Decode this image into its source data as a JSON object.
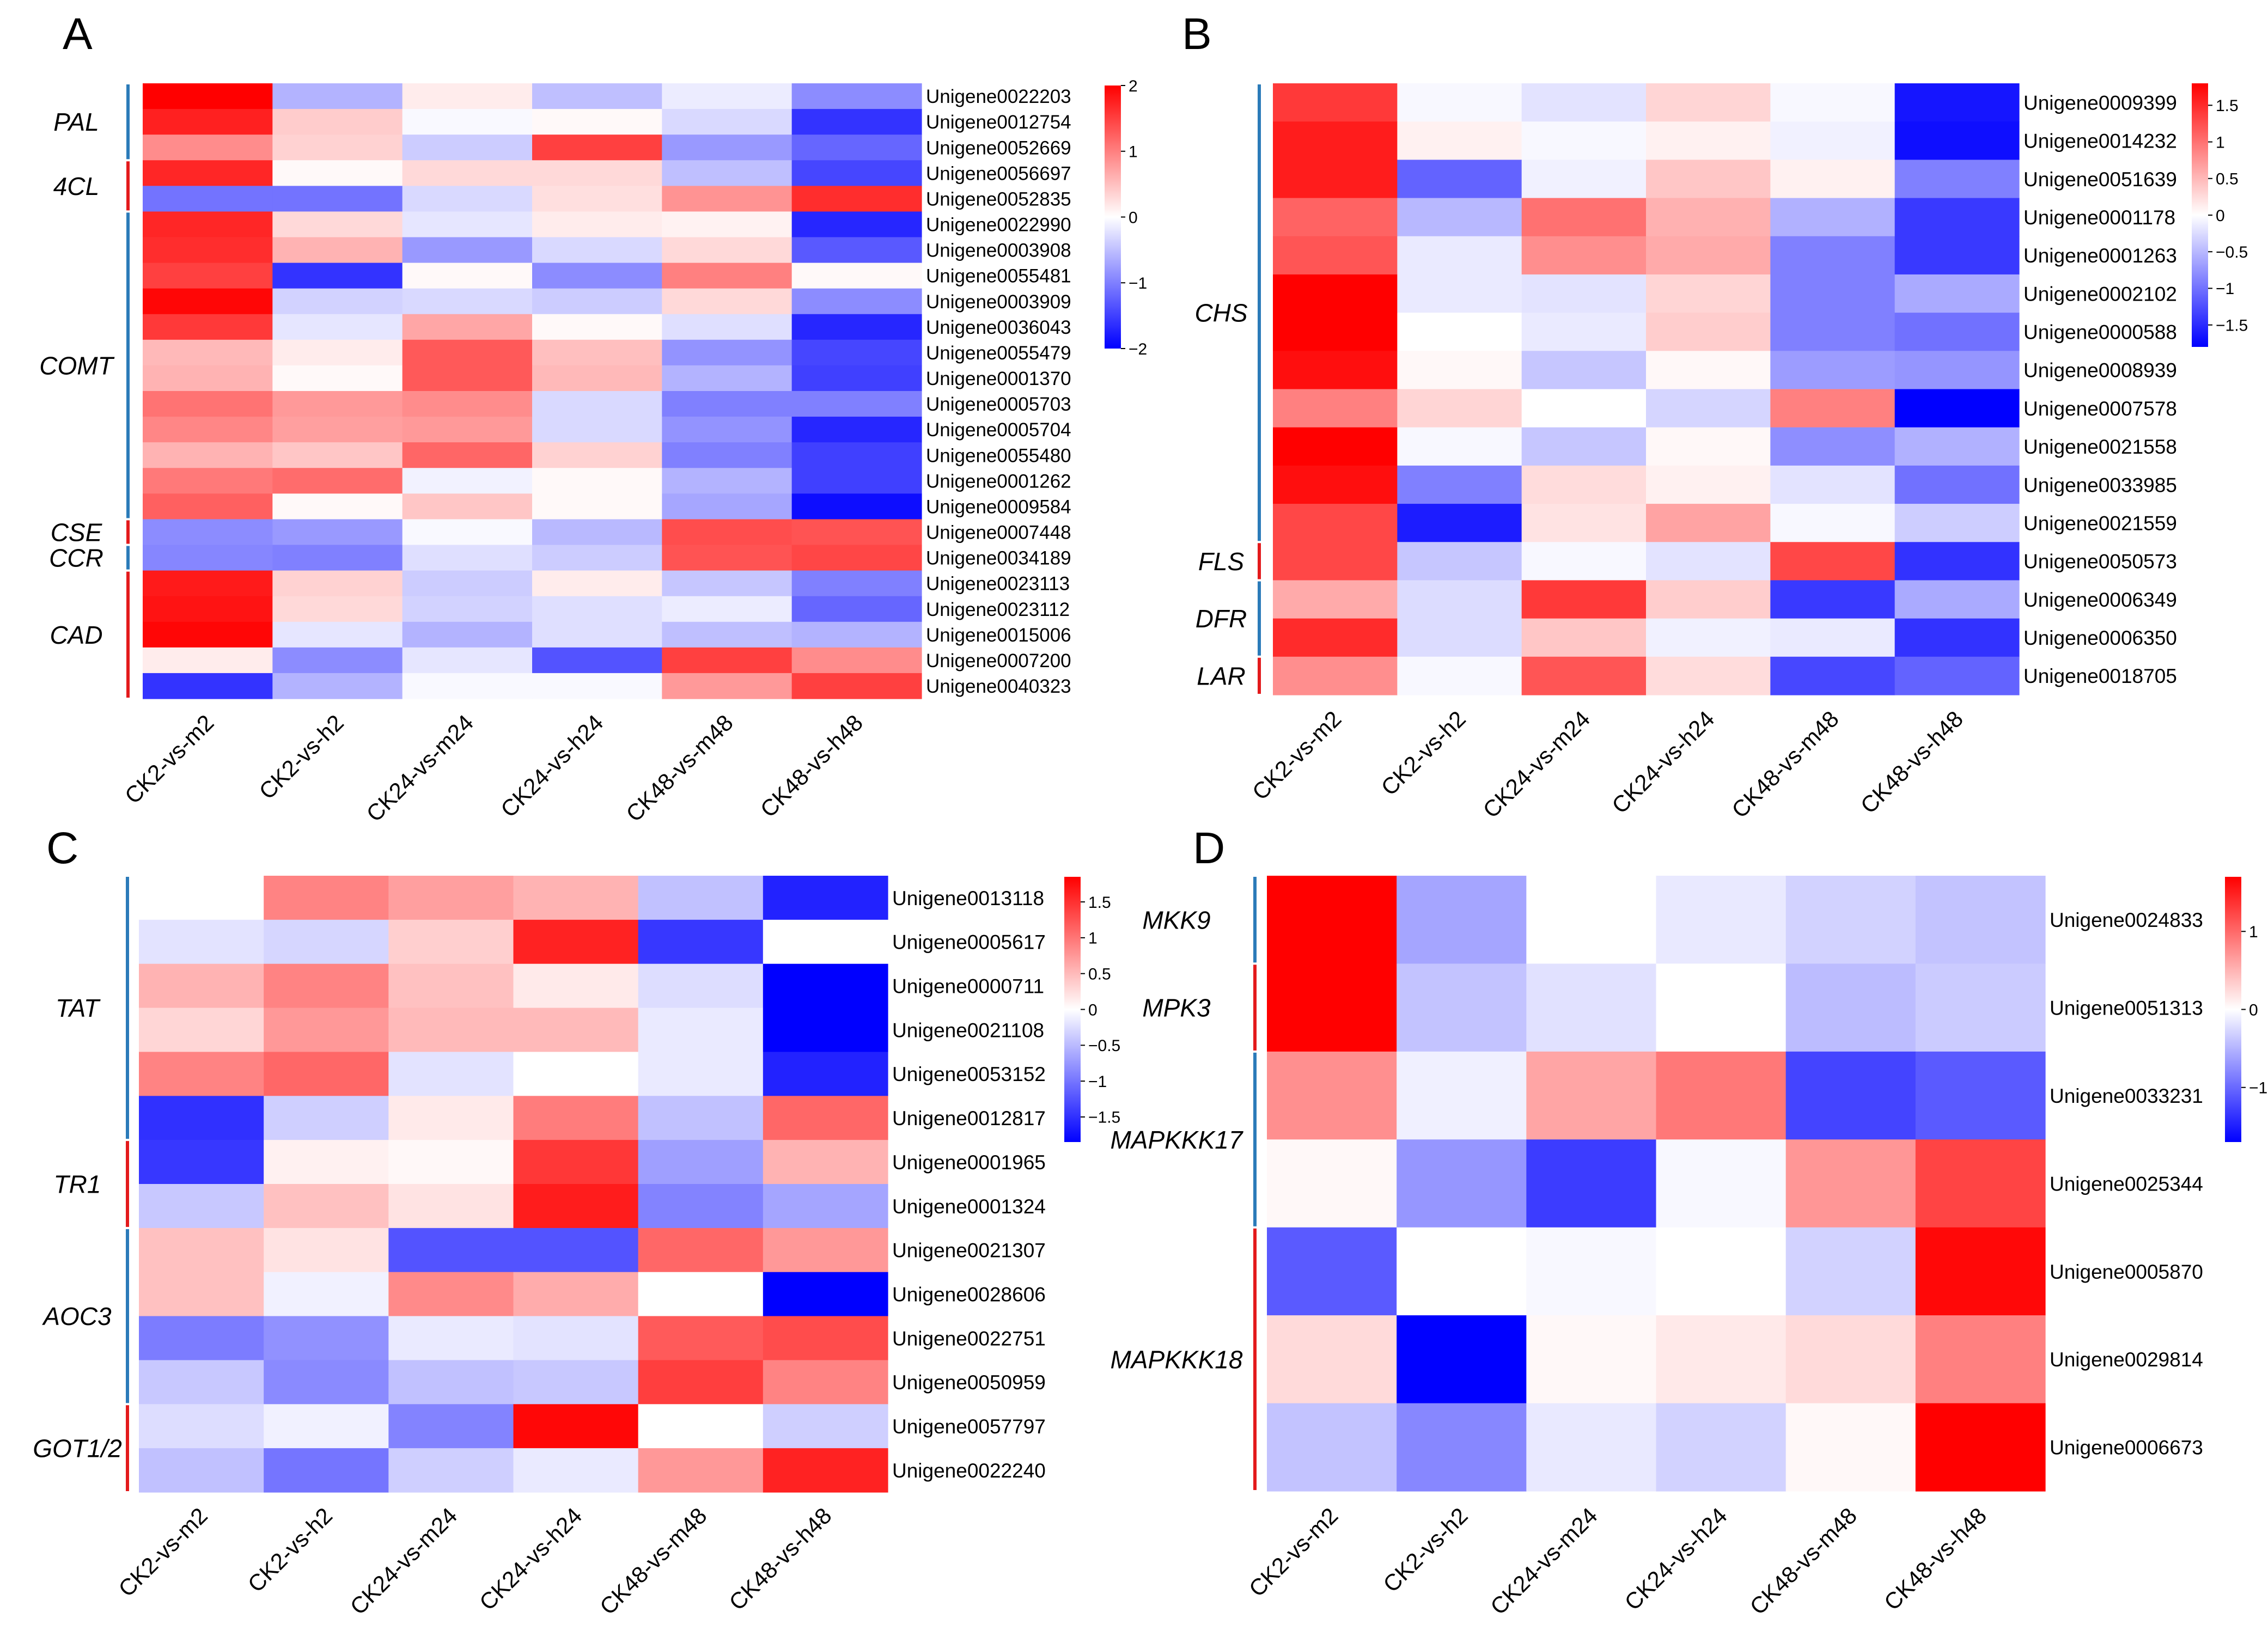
{
  "figure": {
    "columns": [
      "CK2-vs-m2",
      "CK2-vs-h2",
      "CK24-vs-m24",
      "CK24-vs-h24",
      "CK48-vs-m48",
      "CK48-vs-h48"
    ],
    "colors": {
      "low": "#0000ff",
      "mid": "#ffffff",
      "high": "#ff0000",
      "bar_blue": "#2b7bb9",
      "bar_red": "#e31a1c"
    }
  },
  "chart_data": [
    {
      "type": "heatmap",
      "panel": "A",
      "title": "",
      "x": [
        "CK2-vs-m2",
        "CK2-vs-h2",
        "CK24-vs-m24",
        "CK24-vs-h24",
        "CK48-vs-m48",
        "CK48-vs-h48"
      ],
      "rows": [
        "Unigene0022203",
        "Unigene0012754",
        "Unigene0052669",
        "Unigene0056697",
        "Unigene0052835",
        "Unigene0022990",
        "Unigene0003908",
        "Unigene0055481",
        "Unigene0003909",
        "Unigene0036043",
        "Unigene0055479",
        "Unigene0001370",
        "Unigene0005703",
        "Unigene0005704",
        "Unigene0055480",
        "Unigene0001262",
        "Unigene0009584",
        "Unigene0007448",
        "Unigene0034189",
        "Unigene0023113",
        "Unigene0023112",
        "Unigene0015006",
        "Unigene0007200",
        "Unigene0040323"
      ],
      "values": [
        [
          2.0,
          -0.6,
          0.15,
          -0.5,
          -0.15,
          -0.9
        ],
        [
          1.75,
          0.4,
          -0.05,
          0.05,
          -0.3,
          -1.6
        ],
        [
          0.9,
          0.35,
          -0.4,
          1.5,
          -0.8,
          -1.2
        ],
        [
          1.7,
          0.05,
          0.3,
          0.3,
          -0.5,
          -1.45
        ],
        [
          -1.1,
          -1.1,
          -0.3,
          0.25,
          0.85,
          1.65
        ],
        [
          1.7,
          0.3,
          -0.2,
          0.15,
          0.1,
          -1.7
        ],
        [
          1.65,
          0.6,
          -0.8,
          -0.3,
          0.3,
          -1.3
        ],
        [
          1.5,
          -1.6,
          0.05,
          -0.9,
          1.0,
          0.05
        ],
        [
          1.95,
          -0.35,
          -0.3,
          -0.4,
          0.3,
          -0.9
        ],
        [
          1.55,
          -0.2,
          0.7,
          0.05,
          -0.25,
          -1.7
        ],
        [
          0.55,
          0.15,
          1.3,
          0.5,
          -0.85,
          -1.45
        ],
        [
          0.6,
          0.05,
          1.3,
          0.55,
          -0.6,
          -1.5
        ],
        [
          1.1,
          0.8,
          0.9,
          -0.3,
          -1.0,
          -1.0
        ],
        [
          0.95,
          0.75,
          0.8,
          -0.3,
          -0.85,
          -1.7
        ],
        [
          0.6,
          0.45,
          1.2,
          0.35,
          -1.0,
          -1.5
        ],
        [
          1.05,
          1.15,
          -0.1,
          0.05,
          -0.6,
          -1.5
        ],
        [
          1.25,
          0.05,
          0.45,
          0.05,
          -0.7,
          -1.9
        ],
        [
          -0.9,
          -0.8,
          -0.05,
          -0.55,
          1.4,
          1.35
        ],
        [
          -0.95,
          -1.0,
          -0.25,
          -0.4,
          1.35,
          1.45
        ],
        [
          1.8,
          0.35,
          -0.4,
          0.15,
          -0.45,
          -1.0
        ],
        [
          1.85,
          0.3,
          -0.35,
          -0.25,
          -0.15,
          -1.2
        ],
        [
          1.95,
          -0.2,
          -0.6,
          -0.25,
          -0.5,
          -0.6
        ],
        [
          0.15,
          -0.9,
          -0.2,
          -1.35,
          1.5,
          0.9
        ],
        [
          -1.6,
          -0.6,
          -0.05,
          -0.05,
          0.8,
          1.5
        ]
      ],
      "groups": [
        {
          "label": "PAL",
          "start": 0,
          "end": 2,
          "color": "#2b7bb9"
        },
        {
          "label": "4CL",
          "start": 3,
          "end": 4,
          "color": "#e31a1c"
        },
        {
          "label": "COMT",
          "start": 5,
          "end": 16,
          "color": "#2b7bb9"
        },
        {
          "label": "CSE",
          "start": 17,
          "end": 17,
          "color": "#e31a1c"
        },
        {
          "label": "CCR",
          "start": 18,
          "end": 18,
          "color": "#2b7bb9"
        },
        {
          "label": "CAD",
          "start": 19,
          "end": 23,
          "color": "#e31a1c"
        }
      ],
      "legend_ticks": [
        "2",
        "1",
        "0",
        "−1",
        "−2"
      ],
      "legend_tick_values": [
        2,
        1,
        0,
        -1,
        -2
      ],
      "range": [
        -2,
        2
      ]
    },
    {
      "type": "heatmap",
      "panel": "B",
      "title": "",
      "x": [
        "CK2-vs-m2",
        "CK2-vs-h2",
        "CK24-vs-m24",
        "CK24-vs-h24",
        "CK48-vs-m48",
        "CK48-vs-h48"
      ],
      "rows": [
        "Unigene0009399",
        "Unigene0014232",
        "Unigene0051639",
        "Unigene0001178",
        "Unigene0001263",
        "Unigene0002102",
        "Unigene0000588",
        "Unigene0008939",
        "Unigene0007578",
        "Unigene0021558",
        "Unigene0033985",
        "Unigene0021559",
        "Unigene0050573",
        "Unigene0006349",
        "Unigene0006350",
        "Unigene0018705"
      ],
      "values": [
        [
          1.4,
          -0.05,
          -0.2,
          0.3,
          -0.05,
          -1.65
        ],
        [
          1.6,
          0.1,
          -0.05,
          0.1,
          -0.1,
          -1.7
        ],
        [
          1.6,
          -1.1,
          -0.1,
          0.4,
          0.1,
          -0.9
        ],
        [
          1.1,
          -0.5,
          1.0,
          0.55,
          -0.55,
          -1.4
        ],
        [
          1.2,
          -0.15,
          0.8,
          0.6,
          -0.9,
          -1.4
        ],
        [
          1.8,
          -0.15,
          -0.2,
          0.3,
          -0.9,
          -0.6
        ],
        [
          1.8,
          0.0,
          -0.15,
          0.35,
          -0.9,
          -1.0
        ],
        [
          1.7,
          0.05,
          -0.4,
          0.05,
          -0.7,
          -0.75
        ],
        [
          0.9,
          0.3,
          0.0,
          -0.3,
          0.9,
          -1.8
        ],
        [
          1.8,
          -0.05,
          -0.4,
          0.05,
          -0.8,
          -0.55
        ],
        [
          1.7,
          -0.9,
          0.25,
          0.1,
          -0.2,
          -1.0
        ],
        [
          1.3,
          -1.6,
          0.2,
          0.65,
          -0.05,
          -0.35
        ],
        [
          1.3,
          -0.4,
          -0.05,
          -0.2,
          1.3,
          -1.45
        ],
        [
          0.6,
          -0.25,
          1.4,
          0.35,
          -1.4,
          -0.6
        ],
        [
          1.5,
          -0.25,
          0.4,
          -0.1,
          -0.15,
          -1.45
        ],
        [
          0.8,
          -0.05,
          1.2,
          0.25,
          -1.3,
          -1.1
        ]
      ],
      "groups": [
        {
          "label": "CHS",
          "start": 0,
          "end": 11,
          "color": "#2b7bb9"
        },
        {
          "label": "FLS",
          "start": 12,
          "end": 12,
          "color": "#e31a1c"
        },
        {
          "label": "DFR",
          "start": 13,
          "end": 14,
          "color": "#2b7bb9"
        },
        {
          "label": "LAR",
          "start": 15,
          "end": 15,
          "color": "#e31a1c"
        }
      ],
      "legend_ticks": [
        "1.5",
        "1",
        "0.5",
        "0",
        "−0.5",
        "−1",
        "−1.5"
      ],
      "legend_tick_values": [
        1.5,
        1,
        0.5,
        0,
        -0.5,
        -1,
        -1.5
      ],
      "range": [
        -1.8,
        1.8
      ]
    },
    {
      "type": "heatmap",
      "panel": "C",
      "title": "",
      "x": [
        "CK2-vs-m2",
        "CK2-vs-h2",
        "CK24-vs-m24",
        "CK24-vs-h24",
        "CK48-vs-m48",
        "CK48-vs-h48"
      ],
      "rows": [
        "Unigene0013118",
        "Unigene0005617",
        "Unigene0000711",
        "Unigene0021108",
        "Unigene0053152",
        "Unigene0012817",
        "Unigene0001965",
        "Unigene0001324",
        "Unigene0021307",
        "Unigene0028606",
        "Unigene0022751",
        "Unigene0050959",
        "Unigene0057797",
        "Unigene0022240"
      ],
      "values": [
        [
          0.0,
          0.9,
          0.7,
          0.55,
          -0.45,
          -1.6
        ],
        [
          -0.2,
          -0.3,
          0.35,
          1.6,
          -1.45,
          0.0
        ],
        [
          0.55,
          0.9,
          0.45,
          0.15,
          -0.25,
          -1.85
        ],
        [
          0.3,
          0.75,
          0.5,
          0.5,
          -0.15,
          -1.85
        ],
        [
          0.9,
          1.1,
          -0.2,
          0.0,
          -0.15,
          -1.6
        ],
        [
          -1.5,
          -0.35,
          0.15,
          0.95,
          -0.45,
          1.1
        ],
        [
          -1.45,
          0.1,
          0.05,
          1.45,
          -0.7,
          0.55
        ],
        [
          -0.4,
          0.45,
          0.2,
          1.65,
          -0.9,
          -0.65
        ],
        [
          0.45,
          0.2,
          -1.25,
          -1.25,
          1.1,
          0.75
        ],
        [
          0.45,
          -0.1,
          0.85,
          0.6,
          0.0,
          -1.85
        ],
        [
          -0.95,
          -0.8,
          -0.15,
          -0.2,
          1.2,
          1.3
        ],
        [
          -0.4,
          -0.85,
          -0.45,
          -0.4,
          1.4,
          0.9
        ],
        [
          -0.25,
          -0.1,
          -0.9,
          1.8,
          0.0,
          -0.35
        ],
        [
          -0.45,
          -1.0,
          -0.35,
          -0.15,
          0.75,
          1.6
        ]
      ],
      "groups": [
        {
          "label": "TAT",
          "start": 0,
          "end": 5,
          "color": "#2b7bb9"
        },
        {
          "label": "TR1",
          "start": 6,
          "end": 7,
          "color": "#e31a1c"
        },
        {
          "label": "AOC3",
          "start": 8,
          "end": 11,
          "color": "#2b7bb9"
        },
        {
          "label": "GOT1/2",
          "start": 12,
          "end": 13,
          "color": "#e31a1c"
        }
      ],
      "legend_ticks": [
        "1.5",
        "1",
        "0.5",
        "0",
        "−0.5",
        "−1",
        "−1.5"
      ],
      "legend_tick_values": [
        1.5,
        1,
        0.5,
        0,
        -0.5,
        -1,
        -1.5
      ],
      "range": [
        -1.85,
        1.85
      ]
    },
    {
      "type": "heatmap",
      "panel": "D",
      "title": "",
      "x": [
        "CK2-vs-m2",
        "CK2-vs-h2",
        "CK24-vs-m24",
        "CK24-vs-h24",
        "CK48-vs-m48",
        "CK48-vs-h48"
      ],
      "rows": [
        "Unigene0024833",
        "Unigene0051313",
        "Unigene0033231",
        "Unigene0025344",
        "Unigene0005870",
        "Unigene0029814",
        "Unigene0006673"
      ],
      "values": [
        [
          1.7,
          -0.6,
          0.0,
          -0.15,
          -0.3,
          -0.4
        ],
        [
          1.7,
          -0.4,
          -0.2,
          0.0,
          -0.45,
          -0.35
        ],
        [
          0.75,
          -0.1,
          0.6,
          0.9,
          -1.25,
          -1.1
        ],
        [
          0.05,
          -0.7,
          -1.3,
          -0.05,
          0.7,
          1.25
        ],
        [
          -1.1,
          0.0,
          -0.05,
          0.0,
          -0.3,
          1.65
        ],
        [
          0.25,
          -1.7,
          0.05,
          0.15,
          0.25,
          0.85
        ],
        [
          -0.4,
          -0.8,
          -0.15,
          -0.3,
          0.05,
          1.7
        ]
      ],
      "groups": [
        {
          "label": "MKK9",
          "start": 0,
          "end": 0,
          "color": "#2b7bb9"
        },
        {
          "label": "MPK3",
          "start": 1,
          "end": 1,
          "color": "#e31a1c"
        },
        {
          "label": "MAPKKK17",
          "start": 2,
          "end": 3,
          "color": "#2b7bb9"
        },
        {
          "label": "MAPKKK18",
          "start": 4,
          "end": 6,
          "color": "#e31a1c"
        }
      ],
      "legend_ticks": [
        "1",
        "0",
        "−1"
      ],
      "legend_tick_values": [
        1,
        0,
        -1
      ],
      "range": [
        -1.7,
        1.7
      ]
    }
  ]
}
